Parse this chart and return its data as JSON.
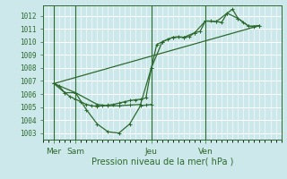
{
  "title": "Pression niveau de la mer( hPa )",
  "bg_color": "#cce8ea",
  "grid_color": "#ffffff",
  "line_color": "#2d6a2d",
  "ylim": [
    1002.5,
    1012.8
  ],
  "yticks": [
    1003,
    1004,
    1005,
    1006,
    1007,
    1008,
    1009,
    1010,
    1011,
    1012
  ],
  "xlim": [
    0,
    22
  ],
  "day_labels": [
    "Mer",
    "Sam",
    "Jeu",
    "Ven"
  ],
  "day_positions": [
    1,
    3,
    10,
    15
  ],
  "series1_dense": [
    [
      1,
      1006.8
    ],
    [
      1.5,
      1006.6
    ],
    [
      2,
      1006.1
    ],
    [
      2.5,
      1005.8
    ],
    [
      3,
      1005.6
    ],
    [
      3.5,
      1005.4
    ],
    [
      4,
      1005.2
    ],
    [
      4.5,
      1005.1
    ],
    [
      5,
      1005.05
    ],
    [
      5.5,
      1005.1
    ],
    [
      6,
      1005.15
    ],
    [
      6.5,
      1005.2
    ],
    [
      7,
      1005.3
    ],
    [
      7.5,
      1005.4
    ],
    [
      8,
      1005.5
    ],
    [
      8.5,
      1005.55
    ],
    [
      9,
      1005.6
    ],
    [
      9.5,
      1005.7
    ],
    [
      10,
      1008.0
    ],
    [
      10.5,
      1009.8
    ],
    [
      11,
      1010.0
    ],
    [
      11.5,
      1010.2
    ],
    [
      12,
      1010.35
    ],
    [
      12.5,
      1010.4
    ],
    [
      13,
      1010.35
    ],
    [
      13.5,
      1010.4
    ],
    [
      14,
      1010.7
    ],
    [
      14.5,
      1010.8
    ],
    [
      15,
      1011.6
    ],
    [
      15.5,
      1011.6
    ],
    [
      16,
      1011.55
    ],
    [
      16.5,
      1011.5
    ],
    [
      17,
      1012.2
    ],
    [
      17.5,
      1012.5
    ],
    [
      18,
      1011.8
    ],
    [
      18.5,
      1011.5
    ],
    [
      19,
      1011.2
    ],
    [
      19.5,
      1011.15
    ],
    [
      20,
      1011.25
    ]
  ],
  "series_low": [
    [
      1,
      1006.8
    ],
    [
      2,
      1006.1
    ],
    [
      3,
      1006.1
    ],
    [
      4,
      1004.8
    ],
    [
      5,
      1003.7
    ],
    [
      6,
      1003.1
    ],
    [
      7,
      1003.0
    ],
    [
      8,
      1003.7
    ],
    [
      9,
      1005.1
    ],
    [
      9.5,
      1005.15
    ],
    [
      10,
      1005.2
    ]
  ],
  "series_mid": [
    [
      1,
      1006.8
    ],
    [
      3,
      1006.1
    ],
    [
      5,
      1005.2
    ],
    [
      6,
      1005.1
    ],
    [
      7,
      1005.1
    ],
    [
      8,
      1005.15
    ],
    [
      9,
      1005.2
    ],
    [
      10,
      1008.0
    ],
    [
      11,
      1010.0
    ],
    [
      12,
      1010.35
    ],
    [
      13,
      1010.35
    ],
    [
      14,
      1010.7
    ],
    [
      15,
      1011.6
    ],
    [
      16,
      1011.55
    ],
    [
      17,
      1012.2
    ],
    [
      18,
      1011.8
    ],
    [
      19,
      1011.2
    ],
    [
      20,
      1011.25
    ]
  ],
  "series_trend": [
    [
      1,
      1006.8
    ],
    [
      20,
      1011.25
    ]
  ]
}
